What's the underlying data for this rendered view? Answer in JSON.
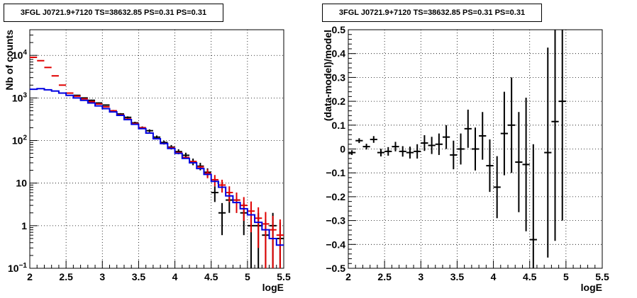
{
  "chart_data": [
    {
      "type": "step",
      "title": "3FGL J0721.9+7120 TS=38632.85 PS=0.31 PS=0.31",
      "xlabel": "logE",
      "ylabel": "Nb of counts",
      "xlim": [
        2,
        5.5
      ],
      "ylim": [
        0.1,
        40000
      ],
      "yscale": "log",
      "grid": true,
      "x_ticks": [
        "2",
        "2.5",
        "3",
        "3.5",
        "4",
        "4.5",
        "5",
        "5.5"
      ],
      "y_ticks": [
        "10⁻¹",
        "1",
        "10",
        "10²",
        "10³",
        "10⁴"
      ],
      "bin_width": 0.1,
      "series": [
        {
          "name": "data",
          "color": "#000000",
          "x": [
            2.55,
            2.65,
            2.75,
            2.85,
            2.95,
            3.05,
            3.15,
            3.25,
            3.35,
            3.45,
            3.55,
            3.65,
            3.75,
            3.85,
            3.95,
            4.05,
            4.15,
            4.25,
            4.35,
            4.45,
            4.55,
            4.65,
            4.75,
            4.85,
            4.95,
            5.05,
            5.15,
            5.25,
            5.35,
            5.45
          ],
          "y": [
            1300,
            1150,
            1000,
            880,
            760,
            680,
            500,
            420,
            350,
            260,
            200,
            170,
            120,
            90,
            70,
            55,
            45,
            32,
            25,
            18,
            6,
            2,
            4,
            4,
            2,
            1,
            1,
            0.6,
            1,
            0.5
          ],
          "yerr": [
            36,
            34,
            32,
            30,
            28,
            26,
            22,
            20,
            19,
            16,
            14,
            13,
            11,
            9.5,
            8.4,
            7.4,
            6.7,
            5.7,
            5,
            4.2,
            2.4,
            1.4,
            2,
            2,
            1.4,
            1,
            1,
            0.8,
            1,
            0.7
          ]
        },
        {
          "name": "model-red",
          "color": "#e00000",
          "x": [
            2.05,
            2.15,
            2.25,
            2.35,
            2.45,
            2.55,
            2.65,
            2.75,
            2.85,
            2.95,
            3.05,
            3.15,
            3.25,
            3.35,
            3.45,
            3.55,
            3.65,
            3.75,
            3.85,
            3.95,
            4.05,
            4.15,
            4.25,
            4.35,
            4.45,
            4.55,
            4.65,
            4.75,
            4.85,
            4.95,
            5.05,
            5.15,
            5.25,
            5.35,
            5.45
          ],
          "y": [
            9000,
            7500,
            5200,
            3300,
            2000,
            1300,
            1100,
            950,
            820,
            720,
            620,
            500,
            400,
            320,
            250,
            200,
            150,
            110,
            85,
            68,
            52,
            40,
            32,
            24,
            17,
            12,
            9,
            6,
            4,
            3,
            2.2,
            1.5,
            1.1,
            0.8,
            0.6
          ],
          "yerr": [
            0,
            0,
            0,
            0,
            0,
            0,
            0,
            0,
            0,
            0,
            0,
            0,
            0,
            0,
            0,
            0,
            0,
            0,
            0,
            0,
            0,
            0,
            0,
            0,
            4,
            3.5,
            3,
            2.4,
            2,
            1.7,
            1.5,
            1.2,
            1,
            0.9,
            0.8
          ]
        },
        {
          "name": "model-blue",
          "color": "#0000e0",
          "x": [
            2.05,
            2.15,
            2.25,
            2.35,
            2.45,
            2.55,
            2.65,
            2.75,
            2.85,
            2.95,
            3.05,
            3.15,
            3.25,
            3.35,
            3.45,
            3.55,
            3.65,
            3.75,
            3.85,
            3.95,
            4.05,
            4.15,
            4.25,
            4.35,
            4.45,
            4.55,
            4.65,
            4.75,
            4.85,
            4.95,
            5.05,
            5.15,
            5.25,
            5.35,
            5.45
          ],
          "y": [
            1600,
            1650,
            1550,
            1450,
            1300,
            1150,
            1000,
            880,
            760,
            650,
            560,
            470,
            390,
            310,
            240,
            190,
            150,
            110,
            85,
            65,
            50,
            38,
            30,
            22,
            16,
            11,
            8,
            5,
            3.5,
            2.5,
            1.8,
            1.2,
            0.8,
            0.5,
            0.35
          ]
        }
      ]
    },
    {
      "type": "scatter",
      "title": "3FGL J0721.9+7120 TS=38632.85 PS=0.31 PS=0.31",
      "xlabel": "logE",
      "ylabel": "(data-model)/model",
      "xlim": [
        2,
        5.5
      ],
      "ylim": [
        -0.5,
        0.5
      ],
      "grid": true,
      "x_ticks": [
        "2",
        "2.5",
        "3",
        "3.5",
        "4",
        "4.5",
        "5",
        "5.5"
      ],
      "y_ticks": [
        "-0.5",
        "-0.4",
        "-0.3",
        "-0.2",
        "-0.1",
        "0",
        "0.1",
        "0.2",
        "0.3",
        "0.4",
        "0.5"
      ],
      "bin_width": 0.1,
      "series": [
        {
          "name": "residuals",
          "color": "#000000",
          "x": [
            2.05,
            2.15,
            2.25,
            2.35,
            2.45,
            2.55,
            2.65,
            2.75,
            2.85,
            2.95,
            3.05,
            3.15,
            3.25,
            3.35,
            3.45,
            3.55,
            3.65,
            3.75,
            3.85,
            3.95,
            4.05,
            4.15,
            4.25,
            4.35,
            4.45,
            4.55,
            4.75,
            4.85,
            4.95
          ],
          "y": [
            -0.015,
            0.035,
            0.01,
            0.04,
            -0.015,
            -0.01,
            0.01,
            -0.01,
            -0.015,
            -0.01,
            0.025,
            0.015,
            0.02,
            0.05,
            -0.025,
            0.0,
            0.085,
            0.0,
            0.055,
            -0.07,
            -0.16,
            0.065,
            0.1,
            -0.055,
            -0.065,
            -0.38,
            -0.015,
            0.115,
            0.2
          ],
          "yerr": [
            0.01,
            0.01,
            0.012,
            0.014,
            0.016,
            0.018,
            0.02,
            0.022,
            0.025,
            0.03,
            0.033,
            0.036,
            0.045,
            0.05,
            0.06,
            0.065,
            0.08,
            0.09,
            0.1,
            0.11,
            0.13,
            0.175,
            0.2,
            0.21,
            0.28,
            0.4,
            0.44,
            0.5,
            0.5
          ]
        }
      ]
    }
  ]
}
